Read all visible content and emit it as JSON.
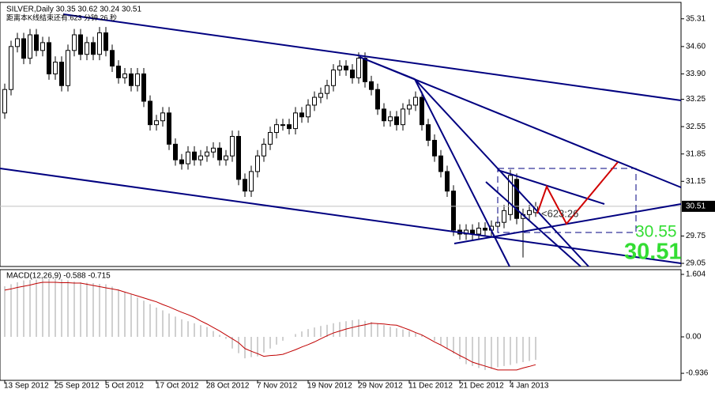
{
  "chart_data": [
    {
      "type": "candlestick",
      "title": "SILVER,Daily  30.35 30.62 30.24 30.51",
      "subtitle": "距离本K线结束还有:623 分钟 26 秒",
      "annotations": [
        "<623:26",
        "30.55"
      ],
      "categories": [
        "13 Sep 2012",
        null,
        null,
        null,
        null,
        null,
        null,
        null,
        "25 Sep 2012",
        null,
        null,
        null,
        null,
        null,
        null,
        null,
        "5 Oct 2012",
        null,
        null,
        null,
        null,
        null,
        null,
        null,
        "17 Oct 2012",
        null,
        null,
        null,
        null,
        null,
        null,
        null,
        "28 Oct 2012",
        null,
        null,
        null,
        null,
        null,
        null,
        null,
        "7 Nov 2012",
        null,
        null,
        null,
        null,
        null,
        null,
        null,
        "19 Nov 2012",
        null,
        null,
        null,
        null,
        null,
        null,
        null,
        "29 Nov 2012",
        null,
        null,
        null,
        null,
        null,
        null,
        null,
        "11 Dec 2012",
        null,
        null,
        null,
        null,
        null,
        null,
        null,
        "21 Dec 2012",
        null,
        null,
        null,
        null,
        null,
        null,
        null,
        "4 Jan 2013",
        null,
        null,
        null,
        null
      ],
      "open": [
        32.9,
        33.5,
        34.6,
        34.8,
        34.3,
        34.9,
        34.5,
        34.7,
        33.9,
        34.2,
        33.6,
        34.5,
        34.9,
        34.4,
        34.7,
        34.4,
        34.95,
        34.5,
        34.1,
        33.8,
        33.9,
        33.6,
        33.9,
        33.2,
        32.6,
        32.7,
        32.9,
        32.1,
        31.7,
        31.6,
        31.9,
        31.7,
        31.8,
        31.9,
        32.0,
        31.7,
        31.8,
        32.3,
        31.2,
        30.9,
        31.4,
        31.8,
        32.1,
        32.4,
        32.6,
        32.6,
        32.5,
        32.9,
        32.8,
        33.1,
        33.3,
        33.4,
        33.6,
        34.0,
        34.1,
        34.0,
        33.8,
        34.3,
        33.7,
        33.5,
        33.0,
        32.7,
        32.8,
        32.6,
        33.0,
        33.1,
        33.3,
        32.6,
        32.2,
        31.8,
        31.4,
        30.9,
        29.9,
        29.8,
        29.9,
        29.8,
        29.95,
        29.9,
        30.0,
        30.1,
        30.3,
        31.2,
        30.2,
        30.3,
        30.35
      ],
      "high": [
        33.65,
        34.75,
        34.95,
        34.95,
        35.05,
        35.05,
        34.85,
        34.85,
        34.35,
        34.35,
        34.65,
        35.05,
        35.05,
        34.85,
        34.85,
        35.1,
        35.1,
        34.65,
        34.25,
        34.05,
        34.05,
        34.05,
        34.05,
        33.35,
        32.85,
        33.05,
        33.05,
        32.25,
        31.85,
        32.05,
        32.05,
        31.95,
        32.05,
        32.15,
        32.15,
        31.95,
        32.45,
        32.45,
        31.35,
        31.55,
        31.95,
        32.25,
        32.55,
        32.75,
        32.75,
        32.75,
        33.05,
        33.05,
        33.25,
        33.45,
        33.55,
        33.75,
        34.15,
        34.25,
        34.25,
        34.15,
        34.45,
        34.45,
        33.85,
        33.65,
        33.15,
        32.95,
        32.95,
        33.15,
        33.25,
        33.45,
        33.45,
        32.75,
        32.35,
        31.95,
        31.55,
        31.05,
        30.05,
        30.05,
        30.05,
        30.1,
        30.1,
        30.15,
        30.25,
        30.55,
        31.45,
        31.35,
        30.45,
        30.55,
        30.62
      ],
      "low": [
        32.75,
        33.35,
        34.45,
        34.15,
        34.15,
        34.35,
        34.35,
        33.75,
        33.75,
        33.45,
        33.45,
        34.35,
        34.25,
        34.25,
        34.25,
        34.25,
        34.35,
        33.95,
        33.65,
        33.65,
        33.45,
        33.45,
        33.05,
        32.45,
        32.45,
        32.55,
        31.95,
        31.55,
        31.45,
        31.45,
        31.55,
        31.55,
        31.65,
        31.75,
        31.55,
        31.55,
        31.65,
        31.05,
        30.75,
        30.75,
        31.25,
        31.65,
        31.95,
        32.25,
        32.45,
        32.35,
        32.35,
        32.65,
        32.65,
        32.95,
        33.15,
        33.25,
        33.45,
        33.85,
        33.85,
        33.65,
        33.65,
        33.55,
        33.35,
        32.85,
        32.55,
        32.55,
        32.45,
        32.45,
        32.85,
        32.95,
        32.45,
        32.05,
        31.65,
        31.25,
        30.75,
        29.75,
        29.65,
        29.65,
        29.65,
        29.65,
        29.75,
        29.75,
        29.85,
        29.95,
        30.15,
        30.05,
        29.2,
        30.15,
        30.24
      ],
      "close": [
        33.5,
        34.6,
        34.8,
        34.3,
        34.9,
        34.5,
        34.7,
        33.9,
        34.2,
        33.6,
        34.5,
        34.9,
        34.4,
        34.7,
        34.4,
        34.95,
        34.5,
        34.1,
        33.8,
        33.9,
        33.6,
        33.9,
        33.2,
        32.6,
        32.7,
        32.9,
        32.1,
        31.7,
        31.6,
        31.9,
        31.7,
        31.8,
        31.9,
        32.0,
        31.7,
        31.8,
        32.3,
        31.2,
        30.9,
        31.4,
        31.8,
        32.1,
        32.4,
        32.6,
        32.6,
        32.5,
        32.9,
        32.8,
        33.1,
        33.3,
        33.4,
        33.6,
        34.0,
        34.1,
        34.0,
        33.8,
        34.3,
        33.7,
        33.5,
        33.0,
        32.7,
        32.8,
        32.6,
        33.0,
        33.1,
        33.3,
        32.6,
        32.2,
        31.8,
        31.4,
        30.9,
        29.9,
        29.8,
        29.9,
        29.8,
        29.95,
        29.9,
        30.0,
        30.1,
        30.4,
        31.3,
        30.2,
        30.3,
        30.4,
        30.51
      ],
      "up_color": "#ffffff",
      "down_color": "#000000",
      "ylim": [
        28.97,
        35.69
      ],
      "yticks": [
        35.31,
        {
          "value": 34.6,
          "label": "34.60"
        },
        {
          "value": 33.9,
          "label": "33.90"
        },
        33.25,
        32.55,
        31.85,
        31.15,
        29.75,
        29.05
      ]
    },
    {
      "type": "macd",
      "title": "MACD(12,26,9) -0.588 -0.715",
      "series": [
        {
          "color": "#a0a0a0",
          "values": [
            1.3,
            1.35,
            1.4,
            1.45,
            1.46,
            1.47,
            1.48,
            1.49,
            1.5,
            1.48,
            1.45,
            1.42,
            1.4,
            1.39,
            1.38,
            1.36,
            1.35,
            1.29,
            1.22,
            1.16,
            1.1,
            1.01,
            0.93,
            0.84,
            0.75,
            0.68,
            0.6,
            0.52,
            0.45,
            0.4,
            0.35,
            0.3,
            0.25,
            0.15,
            0.05,
            -0.05,
            -0.3,
            -0.42,
            -0.55,
            -0.52,
            -0.5,
            -0.4,
            -0.3,
            -0.2,
            -0.1,
            0.0,
            0.07,
            0.14,
            0.2,
            0.24,
            0.28,
            0.31,
            0.35,
            0.38,
            0.4,
            0.43,
            0.45,
            0.41,
            0.38,
            0.34,
            0.3,
            0.26,
            0.22,
            0.19,
            0.15,
            0.1,
            0.05,
            0.0,
            -0.1,
            -0.2,
            -0.3,
            -0.43,
            -0.57,
            -0.7,
            -0.75,
            -0.8,
            -0.85,
            -0.82,
            -0.78,
            -0.75,
            -0.72,
            -0.68,
            -0.65,
            -0.62,
            -0.588
          ]
        },
        {
          "color": "#c00000",
          "values": [
            1.2,
            1.23,
            1.27,
            1.3,
            1.33,
            1.37,
            1.4,
            1.4,
            1.4,
            1.39,
            1.39,
            1.38,
            1.38,
            1.35,
            1.32,
            1.29,
            1.26,
            1.23,
            1.2,
            1.15,
            1.1,
            1.05,
            1.0,
            0.95,
            0.9,
            0.83,
            0.77,
            0.7,
            0.63,
            0.57,
            0.5,
            0.41,
            0.33,
            0.24,
            0.15,
            0.05,
            -0.05,
            -0.15,
            -0.3,
            -0.37,
            -0.43,
            -0.5,
            -0.48,
            -0.47,
            -0.45,
            -0.39,
            -0.33,
            -0.26,
            -0.2,
            -0.13,
            -0.05,
            0.03,
            0.1,
            0.15,
            0.2,
            0.24,
            0.28,
            0.31,
            0.35,
            0.34,
            0.33,
            0.31,
            0.3,
            0.24,
            0.18,
            0.11,
            0.05,
            -0.04,
            -0.13,
            -0.21,
            -0.3,
            -0.39,
            -0.48,
            -0.56,
            -0.65,
            -0.7,
            -0.75,
            -0.8,
            -0.85,
            -0.85,
            -0.85,
            -0.85,
            -0.8,
            -0.76,
            -0.715
          ]
        }
      ],
      "ylim": [
        -1.117,
        1.726
      ],
      "yticks": [
        1.604,
        {
          "value": 0,
          "label": "0.00"
        },
        -0.936
      ]
    }
  ]
}
